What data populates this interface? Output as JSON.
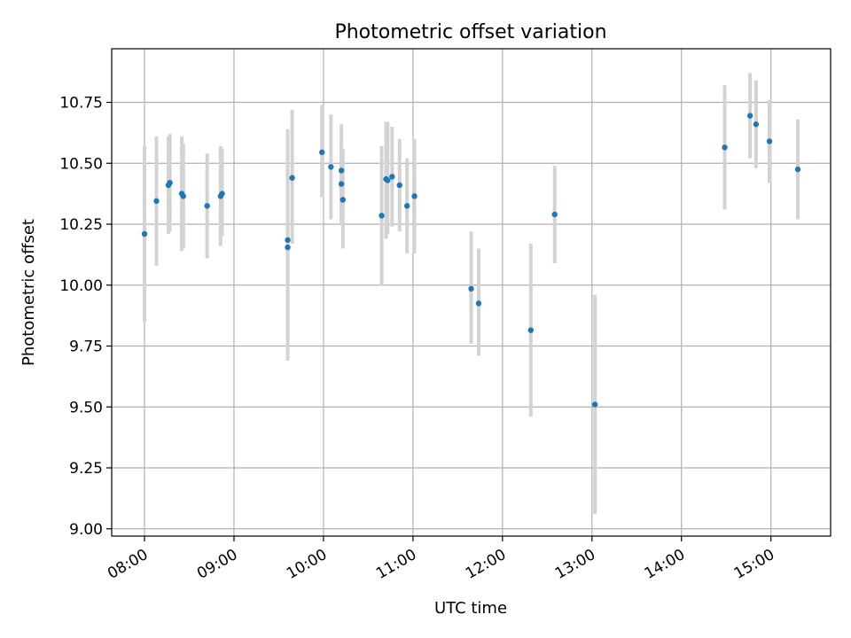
{
  "chart_data": {
    "type": "scatter",
    "title": "Photometric offset variation",
    "xlabel": "UTC time",
    "ylabel": "Photometric offset",
    "x_ticks": [
      "08:00",
      "09:00",
      "10:00",
      "11:00",
      "12:00",
      "13:00",
      "14:00",
      "15:00"
    ],
    "y_ticks": [
      "9.00",
      "9.25",
      "9.50",
      "9.75",
      "10.00",
      "10.25",
      "10.50",
      "10.75"
    ],
    "xlim": [
      "07:38",
      "15:40"
    ],
    "ylim": [
      8.97,
      10.97
    ],
    "grid": true,
    "colors": {
      "points": "#1f77b4",
      "error_bars": "#d3d3d3",
      "grid": "#b0b0b0"
    },
    "series": [
      {
        "points": [
          {
            "x": "08:00",
            "y": 10.21,
            "ylow": 9.85,
            "yhigh": 10.57
          },
          {
            "x": "08:08",
            "y": 10.345,
            "ylow": 10.08,
            "yhigh": 10.61
          },
          {
            "x": "08:16",
            "y": 10.41,
            "ylow": 10.21,
            "yhigh": 10.61
          },
          {
            "x": "08:17",
            "y": 10.42,
            "ylow": 10.22,
            "yhigh": 10.62
          },
          {
            "x": "08:25",
            "y": 10.375,
            "ylow": 10.14,
            "yhigh": 10.61
          },
          {
            "x": "08:26",
            "y": 10.365,
            "ylow": 10.15,
            "yhigh": 10.58
          },
          {
            "x": "08:42",
            "y": 10.325,
            "ylow": 10.11,
            "yhigh": 10.54
          },
          {
            "x": "08:51",
            "y": 10.365,
            "ylow": 10.16,
            "yhigh": 10.57
          },
          {
            "x": "08:52",
            "y": 10.375,
            "ylow": 10.2,
            "yhigh": 10.56
          },
          {
            "x": "09:36",
            "y": 10.185,
            "ylow": 9.74,
            "yhigh": 10.64
          },
          {
            "x": "09:36",
            "y": 10.155,
            "ylow": 9.69,
            "yhigh": 10.62
          },
          {
            "x": "09:39",
            "y": 10.44,
            "ylow": 10.17,
            "yhigh": 10.72
          },
          {
            "x": "09:59",
            "y": 10.545,
            "ylow": 10.36,
            "yhigh": 10.74
          },
          {
            "x": "10:05",
            "y": 10.485,
            "ylow": 10.27,
            "yhigh": 10.7
          },
          {
            "x": "10:12",
            "y": 10.47,
            "ylow": 10.28,
            "yhigh": 10.66
          },
          {
            "x": "10:12",
            "y": 10.415,
            "ylow": 10.25,
            "yhigh": 10.59
          },
          {
            "x": "10:13",
            "y": 10.35,
            "ylow": 10.15,
            "yhigh": 10.56
          },
          {
            "x": "10:39",
            "y": 10.285,
            "ylow": 10.0,
            "yhigh": 10.57
          },
          {
            "x": "10:42",
            "y": 10.435,
            "ylow": 10.19,
            "yhigh": 10.67
          },
          {
            "x": "10:43",
            "y": 10.43,
            "ylow": 10.21,
            "yhigh": 10.67
          },
          {
            "x": "10:46",
            "y": 10.445,
            "ylow": 10.24,
            "yhigh": 10.65
          },
          {
            "x": "10:51",
            "y": 10.41,
            "ylow": 10.22,
            "yhigh": 10.6
          },
          {
            "x": "10:56",
            "y": 10.325,
            "ylow": 10.13,
            "yhigh": 10.52
          },
          {
            "x": "11:01",
            "y": 10.365,
            "ylow": 10.13,
            "yhigh": 10.6
          },
          {
            "x": "11:39",
            "y": 9.985,
            "ylow": 9.76,
            "yhigh": 10.22
          },
          {
            "x": "11:44",
            "y": 9.925,
            "ylow": 9.71,
            "yhigh": 10.15
          },
          {
            "x": "12:19",
            "y": 9.815,
            "ylow": 9.46,
            "yhigh": 10.17
          },
          {
            "x": "12:35",
            "y": 10.29,
            "ylow": 10.09,
            "yhigh": 10.49
          },
          {
            "x": "13:02",
            "y": 9.51,
            "ylow": 9.06,
            "yhigh": 9.96
          },
          {
            "x": "14:29",
            "y": 10.565,
            "ylow": 10.31,
            "yhigh": 10.82
          },
          {
            "x": "14:46",
            "y": 10.695,
            "ylow": 10.52,
            "yhigh": 10.87
          },
          {
            "x": "14:50",
            "y": 10.66,
            "ylow": 10.48,
            "yhigh": 10.84
          },
          {
            "x": "14:59",
            "y": 10.59,
            "ylow": 10.42,
            "yhigh": 10.76
          },
          {
            "x": "15:18",
            "y": 10.475,
            "ylow": 10.27,
            "yhigh": 10.68
          }
        ]
      }
    ]
  }
}
